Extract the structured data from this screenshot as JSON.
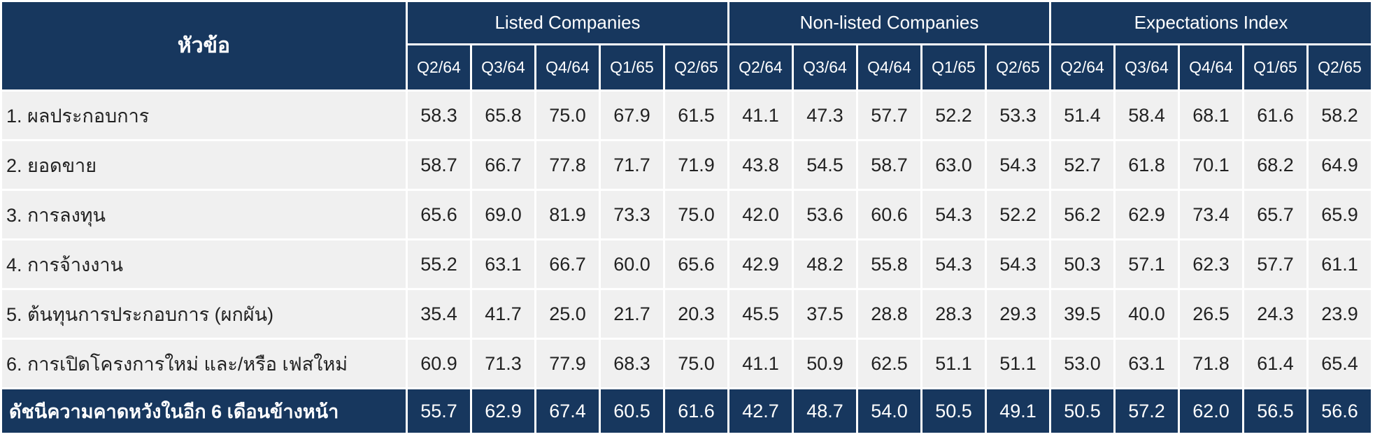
{
  "table": {
    "title": "หัวข้อ",
    "groups": [
      "Listed Companies",
      "Non-listed Companies",
      "Expectations Index"
    ],
    "periods": [
      "Q2/64",
      "Q3/64",
      "Q4/64",
      "Q1/65",
      "Q2/65"
    ],
    "rows": [
      {
        "label": "1. ผลประกอบการ",
        "values": [
          "58.3",
          "65.8",
          "75.0",
          "67.9",
          "61.5",
          "41.1",
          "47.3",
          "57.7",
          "52.2",
          "53.3",
          "51.4",
          "58.4",
          "68.1",
          "61.6",
          "58.2"
        ]
      },
      {
        "label": "2. ยอดขาย",
        "values": [
          "58.7",
          "66.7",
          "77.8",
          "71.7",
          "71.9",
          "43.8",
          "54.5",
          "58.7",
          "63.0",
          "54.3",
          "52.7",
          "61.8",
          "70.1",
          "68.2",
          "64.9"
        ]
      },
      {
        "label": "3. การลงทุน",
        "values": [
          "65.6",
          "69.0",
          "81.9",
          "73.3",
          "75.0",
          "42.0",
          "53.6",
          "60.6",
          "54.3",
          "52.2",
          "56.2",
          "62.9",
          "73.4",
          "65.7",
          "65.9"
        ]
      },
      {
        "label": "4. การจ้างงาน",
        "values": [
          "55.2",
          "63.1",
          "66.7",
          "60.0",
          "65.6",
          "42.9",
          "48.2",
          "55.8",
          "54.3",
          "54.3",
          "50.3",
          "57.1",
          "62.3",
          "57.7",
          "61.1"
        ]
      },
      {
        "label": "5. ต้นทุนการประกอบการ (ผกผัน)",
        "values": [
          "35.4",
          "41.7",
          "25.0",
          "21.7",
          "20.3",
          "45.5",
          "37.5",
          "28.8",
          "28.3",
          "29.3",
          "39.5",
          "40.0",
          "26.5",
          "24.3",
          "23.9"
        ]
      },
      {
        "label": "6. การเปิดโครงการใหม่ และ/หรือ เฟสใหม่",
        "values": [
          "60.9",
          "71.3",
          "77.9",
          "68.3",
          "75.0",
          "41.1",
          "50.9",
          "62.5",
          "51.1",
          "51.1",
          "53.0",
          "63.1",
          "71.8",
          "61.4",
          "65.4"
        ]
      }
    ],
    "index_row": {
      "label": "ดัชนีความคาดหวังในอีก 6 เดือนข้างหน้า",
      "values": [
        "55.7",
        "62.9",
        "67.4",
        "60.5",
        "61.6",
        "42.7",
        "48.7",
        "54.0",
        "50.5",
        "49.1",
        "50.5",
        "57.2",
        "62.0",
        "56.5",
        "56.6"
      ]
    }
  },
  "colors": {
    "header_bg": "#17375e",
    "row_bg": "#f0f0f0",
    "header_text": "#ffffff"
  }
}
